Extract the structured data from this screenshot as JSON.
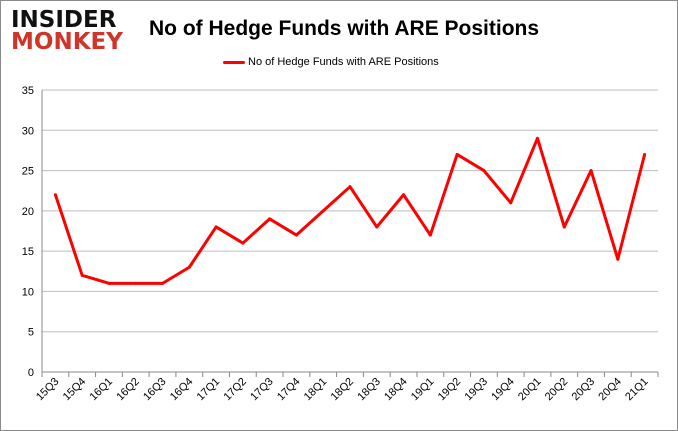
{
  "logo": {
    "line1": "INSIDER",
    "line2": "MONKEY"
  },
  "chart_data": {
    "type": "line",
    "title": "No of Hedge Funds with ARE Positions",
    "xlabel": "",
    "ylabel": "",
    "categories": [
      "15Q3",
      "15Q4",
      "16Q1",
      "16Q2",
      "16Q3",
      "16Q4",
      "17Q1",
      "17Q2",
      "17Q3",
      "17Q4",
      "18Q1",
      "18Q2",
      "18Q3",
      "18Q4",
      "19Q1",
      "19Q2",
      "19Q3",
      "19Q4",
      "20Q1",
      "20Q2",
      "20Q3",
      "20Q4",
      "21Q1"
    ],
    "series": [
      {
        "name": "No of Hedge Funds with ARE Positions",
        "color": "#ff0000",
        "values": [
          22,
          12,
          11,
          11,
          11,
          13,
          18,
          16,
          19,
          17,
          20,
          23,
          18,
          22,
          17,
          27,
          25,
          21,
          29,
          18,
          25,
          14,
          27
        ]
      }
    ],
    "ylim": [
      0,
      35
    ],
    "yticks": [
      0,
      5,
      10,
      15,
      20,
      25,
      30,
      35
    ],
    "grid": true,
    "legend": "top-center"
  }
}
